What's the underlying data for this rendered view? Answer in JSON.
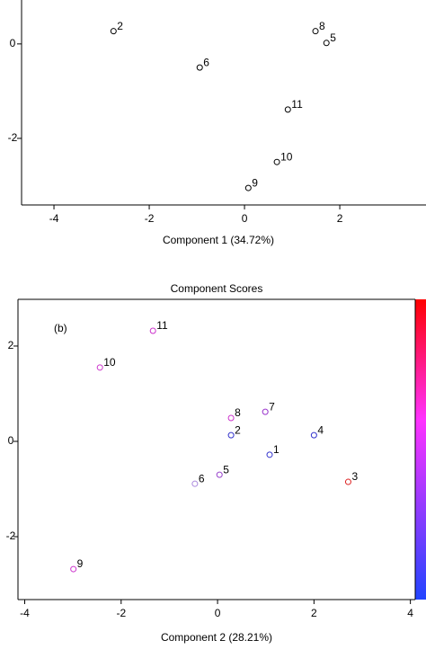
{
  "chart_data": [
    {
      "type": "scatter",
      "xlabel": "Component 1 (34.72%)",
      "x": [
        -2.75,
        -0.94,
        1.49,
        1.72,
        0.91,
        0.68,
        0.08
      ],
      "y": [
        0.27,
        -0.5,
        0.27,
        0.02,
        -1.39,
        -2.5,
        -3.05
      ],
      "point_labels": [
        "2",
        "6",
        "8",
        "5",
        "11",
        "10",
        "9"
      ],
      "color": "#000000",
      "xlim": [
        -4.68,
        3.81
      ],
      "ylim": [
        -3.41,
        0.93
      ],
      "xticks": [
        -4,
        -2,
        0,
        2
      ],
      "yticks": [
        0,
        -2
      ]
    },
    {
      "type": "scatter",
      "title": "Component Scores",
      "xlabel": "Component 2 (28.21%)",
      "annotation": "(b)",
      "x": [
        -1.34,
        -2.44,
        0.28,
        0.99,
        0.28,
        2.0,
        1.08,
        2.71,
        -0.47,
        0.04,
        -2.99
      ],
      "y": [
        2.32,
        1.55,
        0.49,
        0.62,
        0.13,
        0.13,
        -0.28,
        -0.85,
        -0.89,
        -0.7,
        -2.68
      ],
      "point_labels": [
        "11",
        "10",
        "8",
        "7",
        "2",
        "4",
        "1",
        "3",
        "6",
        "5",
        "9"
      ],
      "colors": [
        "#cc33cc",
        "#cc33cc",
        "#cc33cc",
        "#9933cc",
        "#3333cc",
        "#3333cc",
        "#3333cc",
        "#dd2222",
        "#aa88dd",
        "#9944cc",
        "#cc33cc"
      ],
      "xlim": [
        -4.14,
        4.1
      ],
      "ylim": [
        -3.32,
        2.98
      ],
      "xticks": [
        -4,
        -2,
        0,
        2,
        4
      ],
      "yticks": [
        -2,
        0,
        2
      ]
    }
  ]
}
